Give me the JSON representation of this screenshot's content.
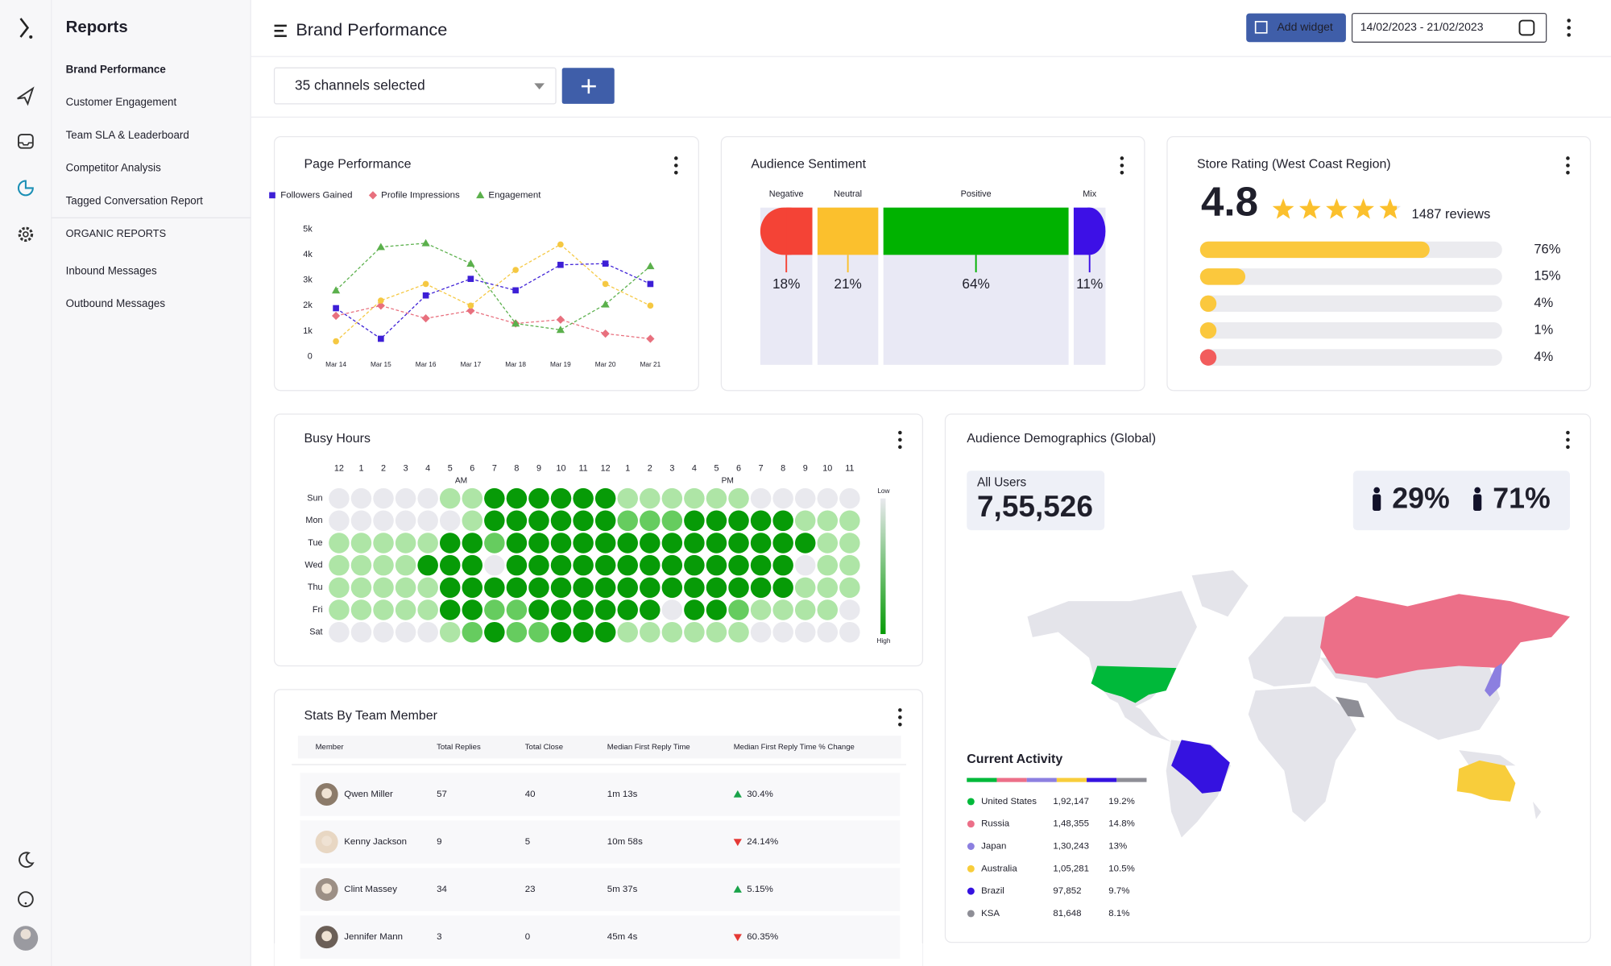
{
  "sidebar": {
    "title": "Reports",
    "items": [
      "Brand Performance",
      "Customer Engagement",
      "Team SLA & Leaderboard",
      "Competitor Analysis",
      "Tagged Conversation Report"
    ],
    "active_item": 0,
    "section": "ORGANIC REPORTS",
    "organic_items": [
      "Inbound Messages",
      "Outbound Messages"
    ]
  },
  "header": {
    "title": "Brand Performance",
    "add_widget": "Add widget",
    "date_range": "14/02/2023 - 21/02/2023"
  },
  "toolbar": {
    "channels": "35 channels selected"
  },
  "chart_data": [
    {
      "type": "line",
      "title": "Page Performance",
      "categories": [
        "Mar 14",
        "Mar 15",
        "Mar 16",
        "Mar 17",
        "Mar 18",
        "Mar 19",
        "Mar 20",
        "Mar 21"
      ],
      "ylim": [
        0,
        5000
      ],
      "yticks": [
        0,
        {
          "value": 1000,
          "label": "1k"
        },
        {
          "value": 2000,
          "label": "2k"
        },
        {
          "value": 3000,
          "label": "3k"
        },
        {
          "value": 4000,
          "label": "4k"
        },
        {
          "value": 5000,
          "label": "5k"
        }
      ],
      "series": [
        {
          "name": "Followers Gained",
          "color": "#3d1fd6",
          "marker": "square",
          "values": [
            1900,
            700,
            2400,
            3050,
            2600,
            3600,
            3650,
            2850
          ]
        },
        {
          "name": "Profile Impressions",
          "color": "#e8707e",
          "marker": "diamond",
          "values": [
            1600,
            2000,
            1500,
            1800,
            1300,
            1450,
            900,
            700
          ]
        },
        {
          "name": "Engagement",
          "color": "#5bb04c",
          "marker": "triangle",
          "values": [
            2600,
            4300,
            4450,
            3650,
            1300,
            1050,
            2050,
            3550
          ]
        },
        {
          "name": null,
          "color": "#f5c842",
          "marker": "circle",
          "values": [
            600,
            2200,
            2850,
            2000,
            3400,
            4400,
            2850,
            2000
          ]
        }
      ]
    },
    {
      "type": "bar",
      "title": "Audience Sentiment",
      "categories": [
        "Negative",
        "Neutral",
        "Positive",
        "Mix"
      ],
      "values": [
        18,
        21,
        64,
        11
      ],
      "value_labels": [
        "18%",
        "21%",
        "64%",
        "11%"
      ],
      "colors": [
        "#f44336",
        "#fbc02d",
        "#00b200",
        "#3d10e6"
      ]
    },
    {
      "type": "hbar",
      "title": "Store Rating (West Coast Region)",
      "rating": 4.8,
      "reviews": "1487 reviews",
      "xlim": [
        0,
        100
      ],
      "values": [
        76,
        15,
        4,
        1,
        4
      ],
      "value_labels": [
        "76%",
        "15%",
        "4%",
        "1%",
        "4%"
      ],
      "colors": [
        "#fbc83d",
        "#fbc83d",
        "#fbc83d",
        "#fbc83d",
        "#f25c5c"
      ]
    },
    {
      "type": "heatmap",
      "title": "Busy Hours",
      "categories": [
        "12",
        "1",
        "2",
        "3",
        "4",
        "5",
        "6",
        "7",
        "8",
        "9",
        "10",
        "11",
        "12",
        "1",
        "2",
        "3",
        "4",
        "5",
        "6",
        "7",
        "8",
        "9",
        "10",
        "11"
      ],
      "periods": [
        "AM",
        "PM"
      ],
      "rows": [
        "Sun",
        "Mon",
        "Tue",
        "Wed",
        "Thu",
        "Fri",
        "Sat"
      ],
      "scale_labels": [
        "Low",
        "High"
      ],
      "colors": [
        "#e9e9ee",
        "#aee5a6",
        "#66cc5f",
        "#079b07"
      ],
      "values": [
        [
          0,
          0,
          0,
          0,
          0,
          1,
          1,
          3,
          3,
          3,
          3,
          3,
          3,
          1,
          1,
          1,
          1,
          1,
          1,
          0,
          0,
          0,
          0,
          0
        ],
        [
          0,
          0,
          0,
          0,
          0,
          0,
          1,
          3,
          3,
          3,
          3,
          3,
          3,
          2,
          2,
          2,
          3,
          3,
          3,
          3,
          3,
          1,
          1,
          1
        ],
        [
          1,
          1,
          1,
          1,
          1,
          3,
          3,
          2,
          3,
          3,
          3,
          3,
          3,
          3,
          3,
          3,
          3,
          3,
          3,
          3,
          3,
          3,
          1,
          1
        ],
        [
          1,
          1,
          1,
          1,
          3,
          3,
          3,
          0,
          3,
          3,
          3,
          3,
          3,
          3,
          3,
          3,
          3,
          3,
          3,
          3,
          3,
          0,
          1,
          1
        ],
        [
          1,
          1,
          1,
          1,
          1,
          3,
          3,
          3,
          3,
          3,
          3,
          3,
          3,
          3,
          3,
          3,
          3,
          3,
          3,
          3,
          3,
          1,
          1,
          1
        ],
        [
          1,
          1,
          1,
          1,
          1,
          3,
          3,
          2,
          2,
          3,
          3,
          3,
          3,
          3,
          3,
          0,
          3,
          3,
          2,
          1,
          1,
          1,
          1,
          0
        ],
        [
          0,
          0,
          0,
          0,
          0,
          1,
          2,
          3,
          2,
          2,
          3,
          3,
          3,
          1,
          1,
          1,
          1,
          1,
          1,
          0,
          0,
          0,
          0,
          0
        ]
      ]
    }
  ],
  "demographics": {
    "title": "Audience Demographics (Global)",
    "all_users_label": "All Users",
    "all_users": "7,55,526",
    "male": "29%",
    "female": "71%",
    "activity_title": "Current Activity",
    "activity": [
      {
        "country": "United States",
        "users": "1,92,147",
        "share": "19.2%",
        "color": "#00b93a"
      },
      {
        "country": "Russia",
        "users": "1,48,355",
        "share": "14.8%",
        "color": "#ec6f88"
      },
      {
        "country": "Japan",
        "users": "1,30,243",
        "share": "13%",
        "color": "#8c7fe0"
      },
      {
        "country": "Australia",
        "users": "1,05,281",
        "share": "10.5%",
        "color": "#f8cd3b"
      },
      {
        "country": "Brazil",
        "users": "97,852",
        "share": "9.7%",
        "color": "#3512e0"
      },
      {
        "country": "KSA",
        "users": "81,648",
        "share": "8.1%",
        "color": "#8e8e96"
      }
    ]
  },
  "team_stats": {
    "title": "Stats By Team Member",
    "columns": [
      "Member",
      "Total Replies",
      "Total Close",
      "Median First Reply Time",
      "Median First Reply Time % Change"
    ],
    "rows": [
      [
        "Qwen Miller",
        "57",
        "40",
        "1m 13s",
        "30.4%"
      ],
      [
        "Kenny Jackson",
        "9",
        "5",
        "10m 58s",
        "24.14%"
      ],
      [
        "Clint Massey",
        "34",
        "23",
        "5m 37s",
        "5.15%"
      ],
      [
        "Jennifer Mann",
        "3",
        "0",
        "45m 4s",
        "60.35%"
      ]
    ],
    "trends": [
      "up",
      "down",
      "up",
      "down"
    ]
  }
}
